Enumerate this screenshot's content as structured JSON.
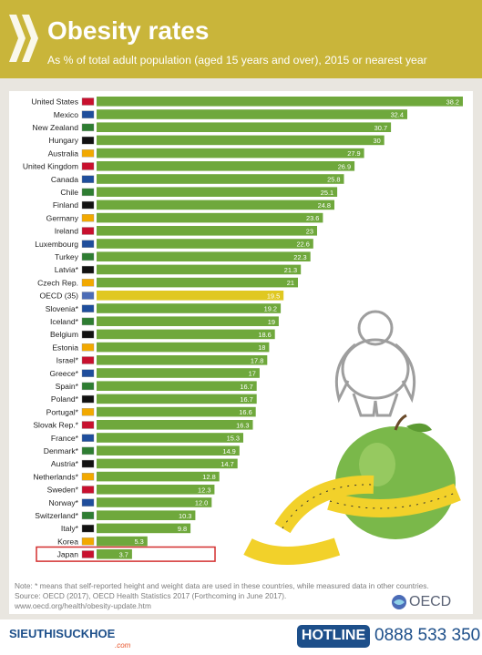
{
  "header": {
    "title": "Obesity rates",
    "subtitle": "As % of total adult population (aged 15 years and over), 2015 or nearest year"
  },
  "chart_data": {
    "type": "bar",
    "orientation": "horizontal",
    "title": "Obesity rates",
    "subtitle": "As % of total adult population (aged 15 years and over), 2015 or nearest year",
    "xlim": [
      0,
      38.2
    ],
    "categories": [
      "United States",
      "Mexico",
      "New Zealand",
      "Hungary",
      "Australia",
      "United Kingdom",
      "Canada",
      "Chile",
      "Finland",
      "Germany",
      "Ireland",
      "Luxembourg",
      "Turkey",
      "Latvia*",
      "Czech Rep.",
      "OECD (35)",
      "Slovenia*",
      "Iceland*",
      "Belgium",
      "Estonia",
      "Israel*",
      "Greece*",
      "Spain*",
      "Poland*",
      "Portugal*",
      "Slovak Rep.*",
      "France*",
      "Denmark*",
      "Austria*",
      "Netherlands*",
      "Sweden*",
      "Norway*",
      "Switzerland*",
      "Italy*",
      "Korea",
      "Japan"
    ],
    "values": [
      38.2,
      32.4,
      30.7,
      30,
      27.9,
      26.9,
      25.8,
      25.1,
      24.8,
      23.6,
      23,
      22.6,
      22.3,
      21.3,
      21,
      19.5,
      19.2,
      19,
      18.6,
      18,
      17.8,
      17,
      16.7,
      16.7,
      16.6,
      16.3,
      15.3,
      14.9,
      14.7,
      12.8,
      12.3,
      12.0,
      10.3,
      9.8,
      5.3,
      3.7
    ],
    "value_labels": [
      "38.2",
      "32.4",
      "30.7",
      "30",
      "27.9",
      "26.9",
      "25.8",
      "25.1",
      "24.8",
      "23.6",
      "23",
      "22.6",
      "22.3",
      "21.3",
      "21",
      "19.5",
      "19.2",
      "19",
      "18.6",
      "18",
      "17.8",
      "17",
      "16.7",
      "16.7",
      "16.6",
      "16.3",
      "15.3",
      "14.9",
      "14.7",
      "12.8",
      "12.3",
      "12.0",
      "10.3",
      "9.8",
      "5.3",
      "3.7"
    ],
    "colors": {
      "default": "#6fa83c",
      "average": "#e0c821",
      "highlight_box": "#d32f2f"
    },
    "average_category": "OECD (35)",
    "highlight_category": "Japan",
    "grid": false,
    "legend": "none"
  },
  "notes": {
    "note": "Note: * means that self-reported height and weight data are used in these countries, while measured data in other countries.",
    "source": "Source: OECD (2017), OECD Health Statistics 2017 (Forthcoming in June 2017).",
    "url": "www.oecd.org/health/obesity-update.htm"
  },
  "logo": {
    "text": "OECD",
    "icon": "oecd-globe-icon"
  },
  "footer": {
    "brand": "SIEUTHISUCKHOE",
    "brand_sub": ".com",
    "hotline_label": "HOTLINE",
    "phone": "0888 533 350"
  }
}
